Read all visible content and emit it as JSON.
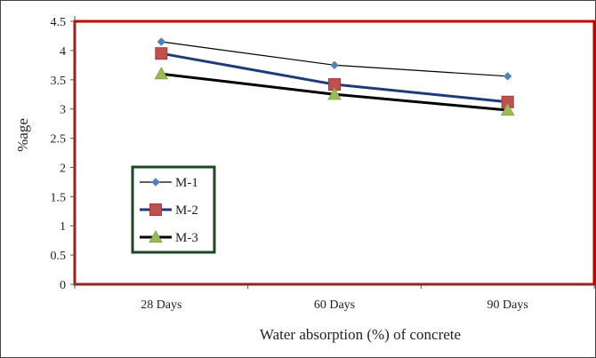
{
  "chart_data": {
    "type": "line",
    "title": "",
    "xlabel": "Water absorption (%) of concrete",
    "ylabel": "%age",
    "categories": [
      "28 Days",
      "60 Days",
      "90 Days"
    ],
    "ylim": [
      0,
      4.5
    ],
    "yticks": [
      "0",
      "0.5",
      "1",
      "1.5",
      "2",
      "2.5",
      "3",
      "3.5",
      "4",
      "4.5"
    ],
    "grid": false,
    "legend_position": "left",
    "series": [
      {
        "name": "M-1",
        "values": [
          4.15,
          3.75,
          3.56
        ],
        "color": "#4f81bd",
        "marker": "diamond"
      },
      {
        "name": "M-2",
        "values": [
          3.95,
          3.42,
          3.12
        ],
        "color": "#c0504d",
        "marker": "square"
      },
      {
        "name": "M-3",
        "values": [
          3.6,
          3.25,
          2.98
        ],
        "color": "#9bbb59",
        "marker": "triangle"
      }
    ],
    "colors": {
      "plot_border": "#c00000",
      "legend_border": "#1e4620"
    }
  }
}
